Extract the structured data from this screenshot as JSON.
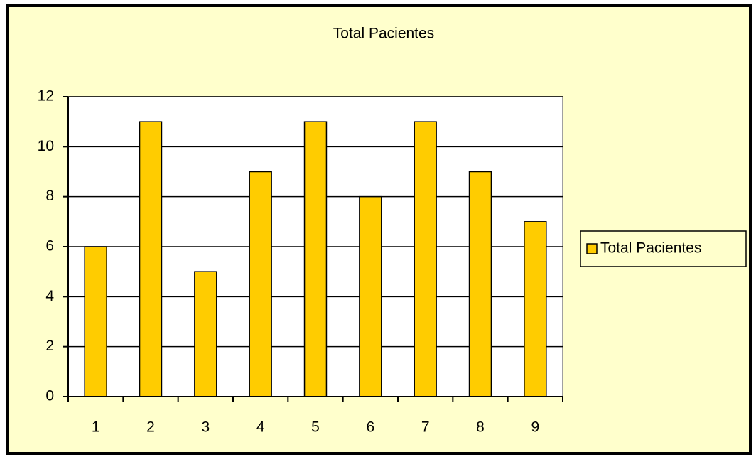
{
  "chart_data": {
    "type": "bar",
    "title": "Total Pacientes",
    "categories": [
      "1",
      "2",
      "3",
      "4",
      "5",
      "6",
      "7",
      "8",
      "9"
    ],
    "series": [
      {
        "name": "Total Pacientes",
        "color": "#ffcc00",
        "values": [
          6,
          11,
          5,
          9,
          11,
          8,
          11,
          9,
          7
        ]
      }
    ],
    "ylim": [
      0,
      12
    ],
    "yticks": [
      0,
      2,
      4,
      6,
      8,
      10,
      12
    ],
    "grid": true,
    "legend": "right"
  }
}
